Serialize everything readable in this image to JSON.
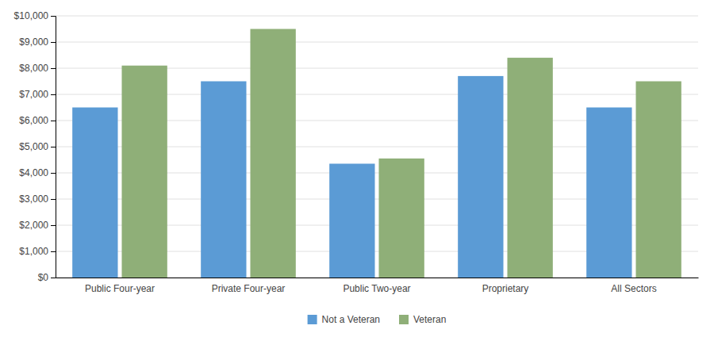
{
  "chart_data": {
    "type": "bar",
    "categories": [
      "Public Four-year",
      "Private Four-year",
      "Public Two-year",
      "Proprietary",
      "All Sectors"
    ],
    "series": [
      {
        "name": "Not a Veteran",
        "color": "#5B9BD5",
        "values": [
          6500,
          7500,
          4350,
          7700,
          6500
        ]
      },
      {
        "name": "Veteran",
        "color": "#8FAF78",
        "values": [
          8100,
          9500,
          4550,
          8400,
          7500
        ]
      }
    ],
    "ylim": [
      0,
      10000
    ],
    "yticks": [
      {
        "value": 0,
        "label": "$0"
      },
      {
        "value": 1000,
        "label": "$1,000"
      },
      {
        "value": 2000,
        "label": "$2,000"
      },
      {
        "value": 3000,
        "label": "$3,000"
      },
      {
        "value": 4000,
        "label": "$4,000"
      },
      {
        "value": 5000,
        "label": "$5,000"
      },
      {
        "value": 6000,
        "label": "$6,000"
      },
      {
        "value": 7000,
        "label": "$7,000"
      },
      {
        "value": 8000,
        "label": "$8,000"
      },
      {
        "value": 9000,
        "label": "$9,000"
      },
      {
        "value": 10000,
        "label": "$10,000"
      }
    ],
    "grid": true,
    "legend": "bottom"
  }
}
